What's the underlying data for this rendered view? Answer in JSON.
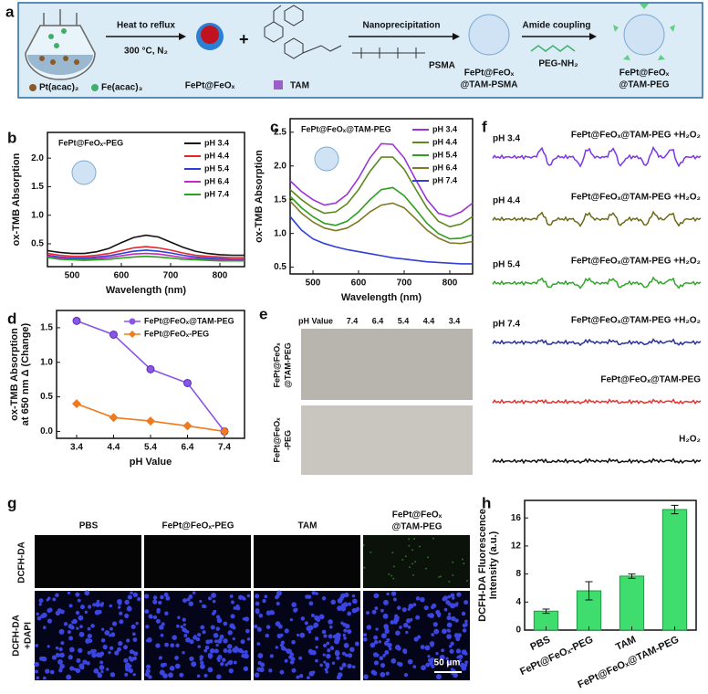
{
  "panel_labels": [
    "a",
    "b",
    "c",
    "d",
    "e",
    "f",
    "g",
    "h"
  ],
  "scheme": {
    "step1": "Heat to reflux",
    "step1_condition": "300 °C, N₂",
    "precursor_pt": "Pt(acac)₂",
    "precursor_fe": "Fe(acac)₃",
    "core": "FePt@FeOₓ",
    "drug": "TAM",
    "step2": "Nanoprecipitation",
    "polymer": "PSMA",
    "intermediate": [
      "FePt@FeOₓ",
      "@TAM-PSMA"
    ],
    "step3": "Amide coupling",
    "reagent": "PEG-NH₂",
    "product": [
      "FePt@FeOₓ",
      "@TAM-PEG"
    ]
  },
  "chart_data": [
    {
      "type": "line",
      "title": "FePt@FeOₓ-PEG",
      "xlabel": "Wavelength (nm)",
      "ylabel": "ox-TMB Absorption",
      "x": [
        450,
        475,
        500,
        525,
        550,
        575,
        600,
        625,
        650,
        675,
        700,
        725,
        750,
        775,
        800,
        825,
        850
      ],
      "xlim": [
        450,
        850
      ],
      "xticks": [
        500,
        600,
        700,
        800
      ],
      "ylim": [
        0.1,
        2.45
      ],
      "yticks": [
        0.5,
        {
          "value": 1.0,
          "label": "1.0"
        },
        1.5,
        {
          "value": 2.0,
          "label": "2.0"
        }
      ],
      "legend": "upper right",
      "series": [
        {
          "name": "pH 3.4",
          "color": "#111111",
          "values": [
            0.38,
            0.35,
            0.33,
            0.33,
            0.36,
            0.42,
            0.52,
            0.61,
            0.65,
            0.62,
            0.53,
            0.44,
            0.37,
            0.33,
            0.31,
            0.3,
            0.3
          ]
        },
        {
          "name": "pH 4.4",
          "color": "#e8232a",
          "values": [
            0.33,
            0.3,
            0.28,
            0.28,
            0.3,
            0.33,
            0.38,
            0.43,
            0.45,
            0.43,
            0.39,
            0.34,
            0.3,
            0.28,
            0.27,
            0.26,
            0.26
          ]
        },
        {
          "name": "pH 5.4",
          "color": "#2a3fd6",
          "values": [
            0.3,
            0.27,
            0.25,
            0.25,
            0.27,
            0.29,
            0.33,
            0.37,
            0.39,
            0.37,
            0.34,
            0.3,
            0.27,
            0.25,
            0.24,
            0.23,
            0.23
          ]
        },
        {
          "name": "pH 6.4",
          "color": "#c22bc2",
          "values": [
            0.28,
            0.25,
            0.23,
            0.23,
            0.24,
            0.26,
            0.29,
            0.32,
            0.33,
            0.32,
            0.29,
            0.26,
            0.24,
            0.23,
            0.22,
            0.21,
            0.21
          ]
        },
        {
          "name": "pH 7.4",
          "color": "#27a31c",
          "values": [
            0.26,
            0.23,
            0.22,
            0.21,
            0.22,
            0.23,
            0.25,
            0.27,
            0.28,
            0.27,
            0.25,
            0.23,
            0.22,
            0.21,
            0.2,
            0.2,
            0.2
          ]
        }
      ]
    },
    {
      "type": "line",
      "title": "FePt@FeOₓ@TAM-PEG",
      "xlabel": "Wavelength (nm)",
      "ylabel": "ox-TMB Absorption",
      "x": [
        450,
        475,
        500,
        525,
        550,
        575,
        600,
        625,
        650,
        675,
        700,
        725,
        750,
        775,
        800,
        825,
        850
      ],
      "xlim": [
        450,
        850
      ],
      "xticks": [
        500,
        600,
        700,
        800
      ],
      "ylim": [
        0.4,
        2.7
      ],
      "yticks": [
        0.5,
        {
          "value": 1.0,
          "label": "1.0"
        },
        1.5,
        {
          "value": 2.0,
          "label": "2.0"
        },
        2.5
      ],
      "legend": "upper right",
      "series": [
        {
          "name": "pH 3.4",
          "color": "#9b33d6",
          "values": [
            1.78,
            1.62,
            1.5,
            1.42,
            1.45,
            1.58,
            1.82,
            2.12,
            2.33,
            2.32,
            2.12,
            1.8,
            1.5,
            1.3,
            1.25,
            1.32,
            1.45
          ]
        },
        {
          "name": "pH 4.4",
          "color": "#5b8a1e",
          "values": [
            1.65,
            1.5,
            1.38,
            1.3,
            1.32,
            1.44,
            1.65,
            1.92,
            2.13,
            2.13,
            1.95,
            1.66,
            1.38,
            1.18,
            1.1,
            1.14,
            1.25
          ]
        },
        {
          "name": "pH 5.4",
          "color": "#2e9e1e",
          "values": [
            1.55,
            1.38,
            1.25,
            1.15,
            1.12,
            1.18,
            1.32,
            1.5,
            1.65,
            1.68,
            1.56,
            1.36,
            1.15,
            1.0,
            0.92,
            0.93,
            0.98
          ]
        },
        {
          "name": "pH 6.4",
          "color": "#7d7a22",
          "values": [
            1.48,
            1.3,
            1.17,
            1.08,
            1.04,
            1.08,
            1.18,
            1.32,
            1.42,
            1.45,
            1.38,
            1.22,
            1.05,
            0.93,
            0.86,
            0.85,
            0.88
          ]
        },
        {
          "name": "pH 7.4",
          "color": "#2f3fd8",
          "values": [
            1.25,
            1.05,
            0.92,
            0.85,
            0.8,
            0.76,
            0.73,
            0.7,
            0.67,
            0.64,
            0.62,
            0.6,
            0.58,
            0.57,
            0.56,
            0.55,
            0.55
          ]
        }
      ]
    },
    {
      "type": "line",
      "xlabel": "pH Value",
      "ylabel": [
        "ox-TMB Absorption",
        "at 650 nm Δ (Change)"
      ],
      "categories": [
        "3.4",
        "4.4",
        "5.4",
        "6.4",
        "7.4"
      ],
      "ylim": [
        -0.1,
        1.75
      ],
      "yticks": [
        {
          "value": 0,
          "label": "0.0"
        },
        0.5,
        {
          "value": 1.0,
          "label": "1.0"
        },
        1.5
      ],
      "legend": "upper right",
      "series": [
        {
          "name": "FePt@FeOₓ@TAM-PEG",
          "color": "#8a55e8",
          "marker": "circle",
          "values": [
            1.6,
            1.4,
            0.9,
            0.7,
            0.0
          ]
        },
        {
          "name": "FePt@FeOₓ-PEG",
          "color": "#f07a1e",
          "marker": "diamond",
          "values": [
            0.4,
            0.2,
            0.15,
            0.08,
            0.0
          ]
        }
      ]
    },
    {
      "type": "bar",
      "ylabel": [
        "DCFH-DA Fluorescence",
        "Intensity (a.u.)"
      ],
      "categories": [
        "PBS",
        "FePt@FeOₓ-PEG",
        "TAM",
        "FePt@FeOₓ@TAM-PEG"
      ],
      "values": [
        2.7,
        5.6,
        7.7,
        17.2
      ],
      "errors": [
        0.3,
        1.3,
        0.3,
        0.6
      ],
      "color": "#3fdc6e",
      "ylim": [
        0,
        18.5
      ],
      "yticks": [
        0,
        4,
        8,
        12,
        16
      ]
    }
  ],
  "panel_e": {
    "header": "pH Value",
    "ph": [
      "7.4",
      "6.4",
      "5.4",
      "4.4",
      "3.4"
    ],
    "rows": [
      [
        "FePt@FeOₓ",
        "@TAM-PEG"
      ],
      [
        "FePt@FeOₓ",
        "-PEG"
      ]
    ]
  },
  "panel_f": {
    "traces": [
      {
        "ph": "pH 3.4",
        "label": "FePt@FeOₓ@TAM-PEG +H₂O₂"
      },
      {
        "ph": "pH 4.4",
        "label": "FePt@FeOₓ@TAM-PEG +H₂O₂"
      },
      {
        "ph": "pH 5.4",
        "label": "FePt@FeOₓ@TAM-PEG +H₂O₂"
      },
      {
        "ph": "pH 7.4",
        "label": "FePt@FeOₓ@TAM-PEG +H₂O₂"
      },
      {
        "label": "FePt@FeOₓ@TAM-PEG"
      },
      {
        "label": "H₂O₂"
      }
    ]
  },
  "panel_g": {
    "columns": [
      "PBS",
      "FePt@FeOₓ-PEG",
      "TAM",
      [
        "FePt@FeOₓ",
        "@TAM-PEG"
      ]
    ],
    "rows": [
      "DCFH-DA",
      [
        "DCFH-DA",
        "+DAPI"
      ]
    ],
    "scale_bar": "50 μm"
  }
}
